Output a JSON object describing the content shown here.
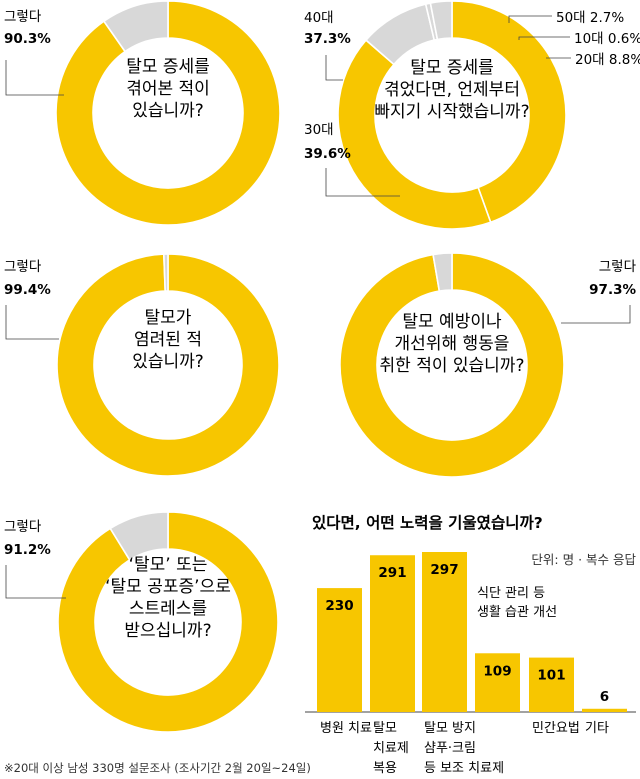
{
  "footnote": "※20대 이상 남성 330명 설문조사 (조사기간 2월 20일~24일)",
  "colors": {
    "accent": "#F7C600",
    "rest": "#D8D8D8",
    "text": "#1A1A1A",
    "leader": "#444444"
  },
  "chart_data": [
    {
      "type": "pie",
      "title_lines": [
        "탈모 증세를",
        "겪어본 적이",
        "있습니까?"
      ],
      "slices": [
        {
          "label": "그렇다",
          "value": 90.3,
          "display": "90.3%"
        },
        {
          "label": "",
          "value": 9.7,
          "display": ""
        }
      ]
    },
    {
      "type": "pie",
      "title_lines": [
        "탈모 증세를",
        "겪었다면, 언제부터",
        "빠지기 시작했습니까?"
      ],
      "slices": [
        {
          "label": "30대",
          "value": 39.6,
          "display": "39.6%"
        },
        {
          "label": "40대",
          "value": 37.3,
          "display": "37.3%"
        },
        {
          "label": "20대",
          "value": 8.8,
          "display": "8.8%"
        },
        {
          "label": "10대",
          "value": 0.6,
          "display": "0.6%"
        },
        {
          "label": "50대",
          "value": 2.7,
          "display": "2.7%"
        }
      ]
    },
    {
      "type": "pie",
      "title_lines": [
        "탈모가",
        "염려된 적",
        "있습니까?"
      ],
      "slices": [
        {
          "label": "그렇다",
          "value": 99.4,
          "display": "99.4%"
        },
        {
          "label": "",
          "value": 0.6,
          "display": ""
        }
      ]
    },
    {
      "type": "pie",
      "title_lines": [
        "탈모 예방이나",
        "개선위해 행동을",
        "취한 적이 있습니까?"
      ],
      "slices": [
        {
          "label": "그렇다",
          "value": 97.3,
          "display": "97.3%"
        },
        {
          "label": "",
          "value": 2.7,
          "display": ""
        }
      ]
    },
    {
      "type": "pie",
      "title_lines": [
        "‘탈모’ 또는",
        "‘탈모 공포증’으로",
        "스트레스를",
        "받으십니까?"
      ],
      "slices": [
        {
          "label": "그렇다",
          "value": 91.2,
          "display": "91.2%"
        },
        {
          "label": "",
          "value": 8.8,
          "display": ""
        }
      ]
    },
    {
      "type": "bar",
      "title": "있다면, 어떤 노력을 기울였습니까?",
      "unit": "단위: 명 · 복수 응답",
      "categories": [
        [
          "병원 치료"
        ],
        [
          "탈모",
          "치료제",
          "복용"
        ],
        [
          "탈모 방지",
          "샴푸·크림",
          "등 보조 치료제"
        ],
        [
          "식단 관리 등",
          "생활 습관 개선"
        ],
        [
          "민간요법"
        ],
        [
          "기타"
        ]
      ],
      "values": [
        230,
        291,
        297,
        109,
        101,
        6
      ]
    }
  ]
}
